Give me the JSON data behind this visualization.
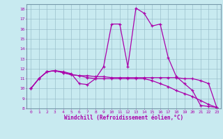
{
  "xlabel": "Windchill (Refroidissement éolien,°C)",
  "bg_color": "#c8eaf0",
  "line_color": "#aa00aa",
  "grid_color": "#9bbfcc",
  "xlim": [
    -0.5,
    23.5
  ],
  "ylim": [
    8,
    18.5
  ],
  "yticks": [
    8,
    9,
    10,
    11,
    12,
    13,
    14,
    15,
    16,
    17,
    18
  ],
  "xticks": [
    0,
    1,
    2,
    3,
    4,
    5,
    6,
    7,
    8,
    9,
    10,
    11,
    12,
    13,
    14,
    15,
    16,
    17,
    18,
    19,
    20,
    21,
    22,
    23
  ],
  "lines": [
    {
      "x": [
        0,
        1,
        2,
        3,
        4,
        5,
        6,
        7,
        8,
        9,
        10,
        11,
        12,
        13,
        14,
        15,
        16,
        17,
        18,
        19,
        20,
        21,
        22,
        23
      ],
      "y": [
        10,
        11,
        11.7,
        11.8,
        11.7,
        11.5,
        10.5,
        10.4,
        11.0,
        12.2,
        16.5,
        16.5,
        12.2,
        18.1,
        17.6,
        16.3,
        16.5,
        13.1,
        11.2,
        10.5,
        9.8,
        8.3,
        8.2,
        8.1
      ]
    },
    {
      "x": [
        0,
        1,
        2,
        3,
        4,
        5,
        6,
        7,
        8,
        9,
        10,
        11,
        12,
        13,
        14,
        15,
        16,
        17,
        18,
        19,
        20,
        21,
        22,
        23
      ],
      "y": [
        10,
        11,
        11.7,
        11.8,
        11.6,
        11.4,
        11.3,
        11.3,
        11.2,
        11.2,
        11.1,
        11.1,
        11.1,
        11.1,
        11.1,
        11.1,
        11.1,
        11.1,
        11.1,
        11.0,
        11.0,
        10.8,
        10.5,
        8.1
      ]
    },
    {
      "x": [
        0,
        1,
        2,
        3,
        4,
        5,
        6,
        7,
        8,
        9,
        10,
        11,
        12,
        13,
        14,
        15,
        16,
        17,
        18,
        19,
        20,
        21,
        22,
        23
      ],
      "y": [
        10,
        11,
        11.7,
        11.8,
        11.6,
        11.4,
        11.3,
        11.1,
        11.0,
        11.0,
        11.0,
        11.0,
        11.0,
        11.0,
        11.0,
        10.8,
        10.5,
        10.2,
        9.8,
        9.5,
        9.2,
        8.8,
        8.4,
        8.1
      ]
    }
  ]
}
